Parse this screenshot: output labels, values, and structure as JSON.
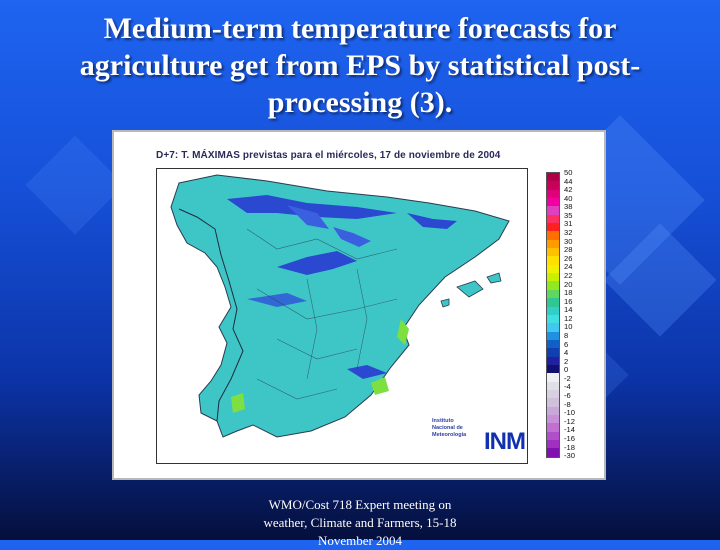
{
  "slide": {
    "title_lines": [
      "Medium-term temperature forecasts for",
      "agriculture get from EPS by statistical post-",
      "processing (3)."
    ],
    "footer_lines": [
      "WMO/Cost 718 Expert meeting on",
      "weather, Climate and Farmers, 15-18",
      "November 2004"
    ]
  },
  "map": {
    "title": "D+7: T. MÁXIMAS previstas para el miércoles, 17 de noviembre de 2004",
    "institute_lines": [
      "Instituto",
      "Nacional de",
      "Meteorología"
    ],
    "logo_text": "INM",
    "legend": {
      "labels": [
        "50",
        "44",
        "42",
        "40",
        "38",
        "35",
        "31",
        "32",
        "30",
        "28",
        "26",
        "24",
        "22",
        "20",
        "18",
        "16",
        "14",
        "12",
        "10",
        "8",
        "6",
        "4",
        "2",
        "0",
        "-2",
        "-4",
        "-6",
        "-8",
        "-10",
        "-12",
        "-14",
        "-16",
        "-18",
        "-30"
      ],
      "colors": [
        "#b0004a",
        "#c8005a",
        "#e0007a",
        "#f000a0",
        "#e040c0",
        "#ff3060",
        "#ff2020",
        "#ff7000",
        "#ff9a00",
        "#ffc000",
        "#ffe000",
        "#f0f000",
        "#c8f000",
        "#90e820",
        "#60d860",
        "#30c890",
        "#30d0c8",
        "#40e0e0",
        "#40c8f0",
        "#2090e0",
        "#1060c8",
        "#1040b0",
        "#2020a0",
        "#101070",
        "#f0f0f0",
        "#e0e0e8",
        "#d8d0e0",
        "#d0c0dc",
        "#c8a8d8",
        "#c890d8",
        "#c070d0",
        "#b050c8",
        "#a030c0",
        "#8010b0"
      ]
    }
  }
}
